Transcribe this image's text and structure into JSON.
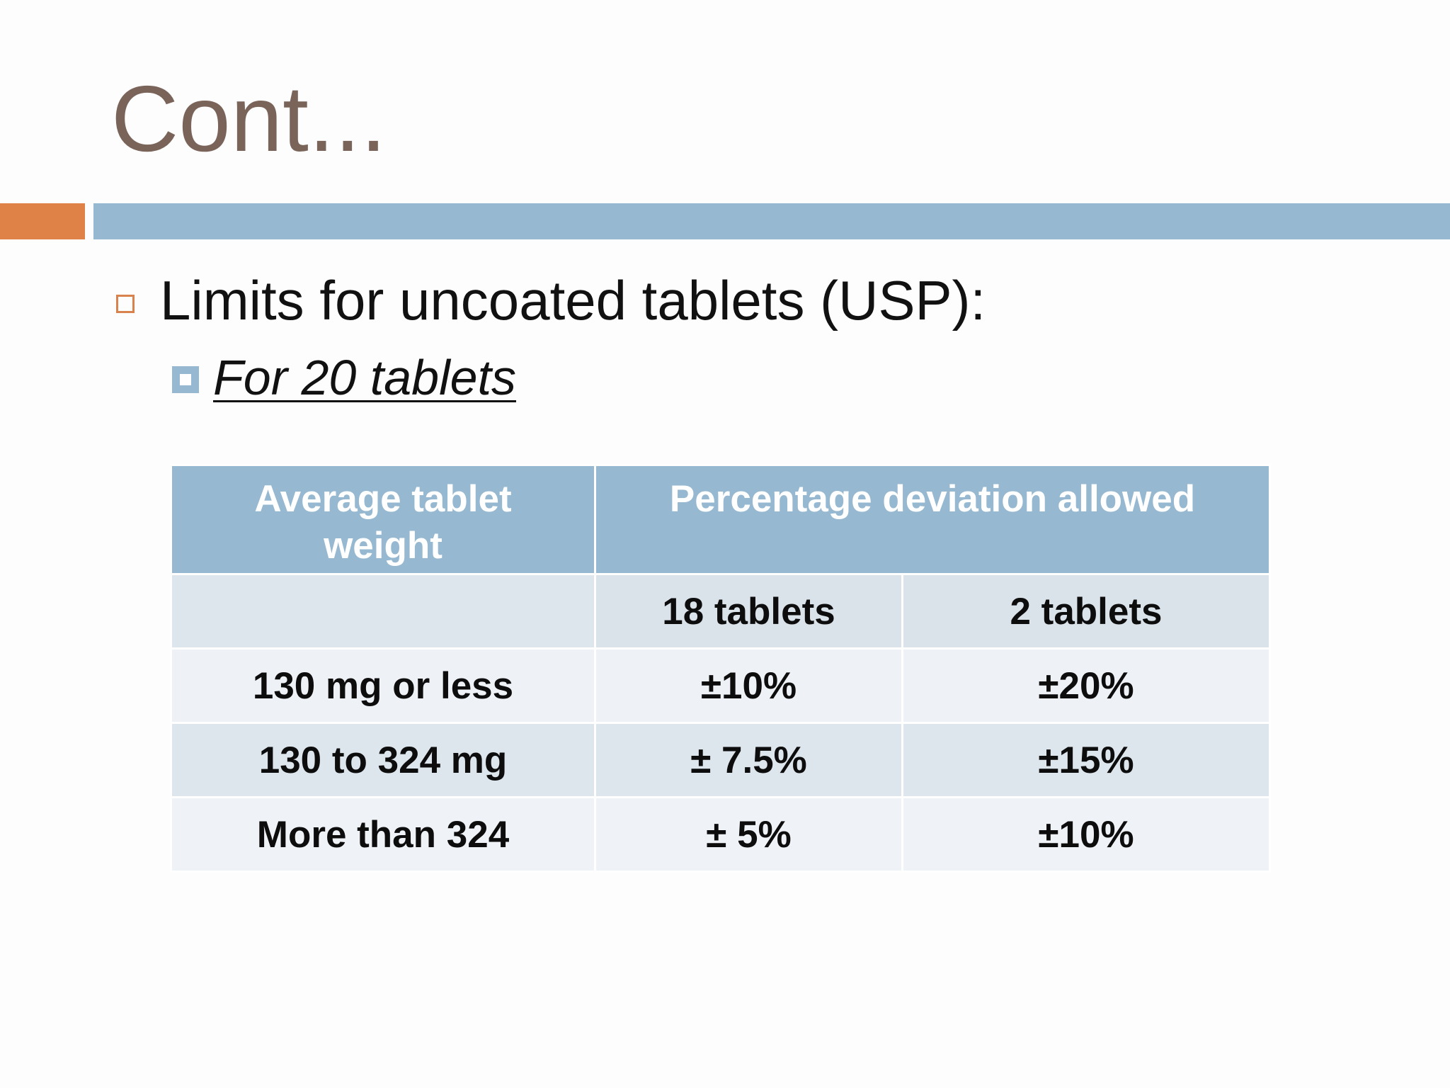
{
  "slide": {
    "title": "Cont...",
    "accent_colors": {
      "orange": "#df8248",
      "blue": "#96b8d1",
      "title_brown": "#7a645a"
    },
    "bullets": [
      {
        "level": 1,
        "text": "Limits for uncoated tablets (USP):",
        "marker": "hollow-square-icon"
      },
      {
        "level": 2,
        "text": "For 20 tablets",
        "marker": "filled-square-icon",
        "style": "italic-underline"
      }
    ]
  },
  "table": {
    "header": {
      "col1_line1": "Average tablet",
      "col1_line2": "weight",
      "col2": "Percentage deviation allowed"
    },
    "subheader": {
      "col1": "",
      "col2": "18 tablets",
      "col3": "2 tablets"
    },
    "rows": [
      {
        "weight": "130 mg or less",
        "eighteen": "±10%",
        "two": "±20%"
      },
      {
        "weight": "130 to 324 mg",
        "eighteen": "± 7.5%",
        "two": "±15%"
      },
      {
        "weight": "More than 324",
        "eighteen": "± 5%",
        "two": "±10%"
      }
    ]
  }
}
